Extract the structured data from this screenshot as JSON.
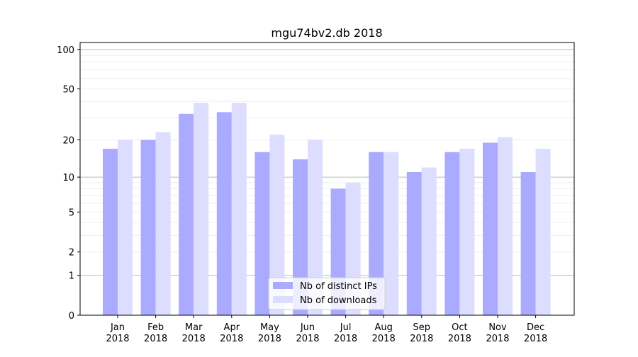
{
  "chart_data": {
    "type": "bar",
    "title": "mgu74bv2.db 2018",
    "xlabel": "",
    "ylabel": "",
    "yscale": "log(x+1)",
    "ylim": [
      0,
      113
    ],
    "yticks": [
      0,
      1,
      2,
      5,
      10,
      20,
      50,
      100
    ],
    "grid": true,
    "legend_position": "bottom-center",
    "categories": [
      "Jan\n2018",
      "Feb\n2018",
      "Mar\n2018",
      "Apr\n2018",
      "May\n2018",
      "Jun\n2018",
      "Jul\n2018",
      "Aug\n2018",
      "Sep\n2018",
      "Oct\n2018",
      "Nov\n2018",
      "Dec\n2018"
    ],
    "series": [
      {
        "name": "Nb of distinct IPs",
        "color": "#aaaaff",
        "values": [
          17,
          20,
          32,
          33,
          16,
          14,
          8,
          16,
          11,
          16,
          19,
          11
        ]
      },
      {
        "name": "Nb of downloads",
        "color": "#ddddff",
        "values": [
          20,
          23,
          39,
          39,
          22,
          20,
          9,
          16,
          12,
          17,
          21,
          17
        ]
      }
    ]
  }
}
